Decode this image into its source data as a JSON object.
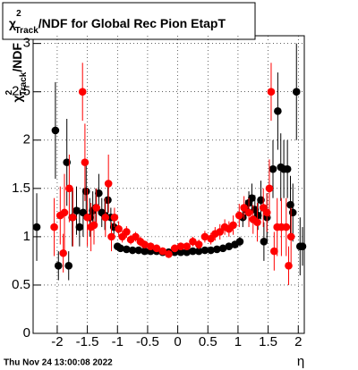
{
  "chart_data": {
    "type": "scatter",
    "title": {
      "symbol": "χ",
      "sup": "2",
      "sub": "Track",
      "text": "/NDF for Global Rec Pion EtapT"
    },
    "ylabel": {
      "symbol": "χ",
      "sup": "2",
      "sub": "Track",
      "text": "/NDF"
    },
    "xlabel": "η",
    "timestamp": "Thu Nov 24 13:00:08 2022",
    "xlim": [
      -2.4,
      2.1
    ],
    "ylim": [
      0,
      3.08
    ],
    "xticks": [
      -2,
      -1.5,
      -1,
      -0.5,
      0,
      0.5,
      1,
      1.5,
      2
    ],
    "yticks": [
      0,
      0.5,
      1,
      1.5,
      2,
      2.5,
      3
    ],
    "grid": true,
    "series": [
      {
        "color": "#000000",
        "x": [
          -2.34,
          -2.03,
          -1.98,
          -1.84,
          -1.81,
          -1.75,
          -1.68,
          -1.63,
          -1.57,
          -1.52,
          -1.46,
          -1.41,
          -1.36,
          -1.31,
          -1.26,
          -1.21,
          -1.16,
          -1.11,
          -1.06,
          -1.0,
          -0.95,
          -0.85,
          -0.75,
          -0.65,
          -0.55,
          -0.45,
          -0.35,
          -0.25,
          -0.15,
          -0.05,
          0.05,
          0.15,
          0.25,
          0.35,
          0.45,
          0.55,
          0.65,
          0.75,
          0.85,
          0.95,
          1.03,
          1.08,
          1.13,
          1.18,
          1.23,
          1.28,
          1.33,
          1.38,
          1.43,
          1.48,
          1.58,
          1.66,
          1.71,
          1.76,
          1.82,
          1.87,
          1.91,
          1.97,
          2.03,
          2.07
        ],
        "values": [
          1.1,
          2.1,
          0.7,
          1.77,
          0.7,
          1.2,
          1.27,
          1.1,
          1.25,
          1.47,
          1.2,
          1.27,
          1.3,
          1.45,
          1.25,
          1.22,
          1.38,
          1.2,
          1.1,
          0.9,
          0.88,
          0.87,
          0.86,
          0.86,
          0.85,
          0.85,
          0.85,
          0.84,
          0.84,
          0.84,
          0.84,
          0.84,
          0.85,
          0.85,
          0.86,
          0.86,
          0.87,
          0.88,
          0.9,
          0.92,
          0.95,
          1.2,
          1.28,
          1.35,
          1.4,
          1.28,
          1.22,
          1.38,
          0.95,
          1.2,
          1.7,
          2.3,
          1.72,
          1.7,
          1.7,
          1.33,
          1.25,
          2.5,
          0.9,
          0.9
        ],
        "errors": [
          0.35,
          0.5,
          0.15,
          0.45,
          0.15,
          0.3,
          0.25,
          0.2,
          0.25,
          0.3,
          0.2,
          0.2,
          0.2,
          0.2,
          0.15,
          0.15,
          0.15,
          0.1,
          0.08,
          0.03,
          0.02,
          0.02,
          0.02,
          0.02,
          0.02,
          0.02,
          0.02,
          0.02,
          0.02,
          0.02,
          0.02,
          0.02,
          0.02,
          0.02,
          0.02,
          0.02,
          0.02,
          0.02,
          0.02,
          0.02,
          0.05,
          0.1,
          0.1,
          0.12,
          0.15,
          0.15,
          0.15,
          0.2,
          0.2,
          0.25,
          0.3,
          0.4,
          0.35,
          0.3,
          0.3,
          0.3,
          0.3,
          0.5,
          0.3,
          0.2
        ]
      },
      {
        "color": "#ff0000",
        "x": [
          -2.05,
          -1.95,
          -1.9,
          -1.88,
          -1.8,
          -1.74,
          -1.58,
          -1.54,
          -1.5,
          -1.44,
          -1.39,
          -1.35,
          -1.2,
          -1.15,
          -1.1,
          -1.05,
          -0.98,
          -0.92,
          -0.85,
          -0.78,
          -0.7,
          -0.62,
          -0.55,
          -0.45,
          -0.35,
          -0.25,
          -0.15,
          -0.05,
          0.05,
          0.15,
          0.25,
          0.35,
          0.45,
          0.55,
          0.62,
          0.7,
          0.78,
          0.85,
          0.92,
          1.02,
          1.1,
          1.18,
          1.25,
          1.32,
          1.42,
          1.48,
          1.52,
          1.55,
          1.6,
          1.65,
          1.72,
          1.8,
          1.84,
          1.88
        ],
        "values": [
          1.1,
          1.22,
          0.83,
          1.25,
          1.5,
          1.2,
          2.5,
          1.77,
          1.2,
          1.1,
          1.12,
          1.3,
          1.2,
          1.55,
          1.0,
          1.2,
          1.08,
          1.0,
          1.05,
          0.97,
          1.0,
          0.95,
          0.92,
          0.9,
          0.88,
          0.85,
          0.82,
          0.88,
          0.9,
          0.9,
          0.95,
          0.92,
          1.0,
          0.98,
          1.03,
          1.05,
          1.1,
          1.08,
          1.12,
          1.22,
          1.3,
          1.25,
          1.18,
          1.15,
          1.3,
          1.25,
          1.5,
          2.5,
          0.85,
          1.1,
          1.1,
          1.1,
          0.7,
          1.0
        ],
        "errors": [
          0.3,
          0.3,
          0.2,
          0.4,
          0.35,
          0.3,
          0.3,
          0.4,
          0.3,
          0.25,
          0.2,
          0.2,
          0.2,
          0.3,
          0.15,
          0.1,
          0.08,
          0.06,
          0.06,
          0.05,
          0.05,
          0.05,
          0.04,
          0.04,
          0.04,
          0.04,
          0.04,
          0.04,
          0.04,
          0.04,
          0.05,
          0.05,
          0.06,
          0.06,
          0.07,
          0.08,
          0.08,
          0.08,
          0.1,
          0.12,
          0.12,
          0.15,
          0.15,
          0.2,
          0.2,
          0.2,
          0.3,
          0.3,
          0.2,
          0.3,
          0.3,
          0.3,
          0.2,
          0.3
        ]
      }
    ]
  }
}
